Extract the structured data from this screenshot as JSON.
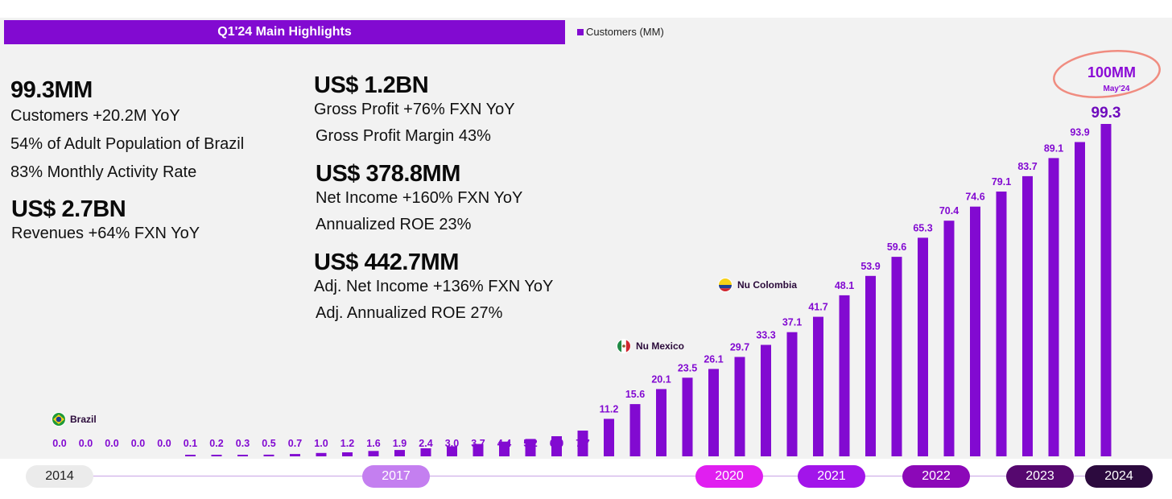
{
  "header": {
    "title": "Q1'24 Main Highlights"
  },
  "legend": {
    "label": "Customers (MM)",
    "color": "#820ad1"
  },
  "highlights": {
    "customers": {
      "headline": "99.3MM",
      "lines": [
        "Customers +20.2M YoY",
        "54% of Adult Population of Brazil",
        "83% Monthly Activity Rate"
      ]
    },
    "revenues": {
      "headline": "US$ 2.7BN",
      "lines": [
        "Revenues +64%  FXN YoY"
      ]
    },
    "gross_profit": {
      "headline": "US$ 1.2BN",
      "lines": [
        "Gross Profit +76%  FXN YoY",
        "Gross Profit Margin 43%"
      ]
    },
    "net_income": {
      "headline": "US$ 378.8MM",
      "lines": [
        "Net Income +160% FXN YoY",
        "Annualized ROE 23%"
      ]
    },
    "adj_net_income": {
      "headline": "US$ 442.7MM",
      "lines": [
        "Adj. Net Income +136% FXN YoY",
        "Adj. Annualized ROE 27%"
      ]
    }
  },
  "chart_data": {
    "type": "bar",
    "series": [
      {
        "name": "Customers (MM)",
        "values": [
          0.0,
          0.0,
          0.0,
          0.0,
          0.0,
          0.1,
          0.2,
          0.3,
          0.5,
          0.7,
          1.0,
          1.2,
          1.6,
          1.9,
          2.4,
          3.0,
          3.7,
          4.4,
          5.2,
          6.0,
          7.7,
          11.2,
          15.6,
          20.1,
          23.5,
          26.1,
          29.7,
          33.3,
          37.1,
          41.7,
          48.1,
          53.9,
          59.6,
          65.3,
          70.4,
          74.6,
          79.1,
          83.7,
          89.1,
          93.9,
          99.3
        ]
      }
    ],
    "bar_color": "#820ad1",
    "last_bar_label_color": "#6f0bbd",
    "grid": false,
    "legend_position": "top-left",
    "annotations": [
      {
        "label": "Brazil",
        "flag": "brazil-flag",
        "at_index": 0
      },
      {
        "label": "Nu Mexico",
        "flag": "mexico-flag",
        "at_index": 23
      },
      {
        "label": "Nu Colombia",
        "flag": "colombia-flag",
        "at_index": 27
      }
    ],
    "callout": {
      "value": "100MM",
      "date": "May'24",
      "color": "#8a0bd6",
      "circle_color": "#f08c80"
    }
  },
  "timeline": {
    "years": [
      {
        "label": "2014",
        "bg": "#ebebeb",
        "fg": "#222222"
      },
      {
        "label": "2017",
        "bg": "#c47ff0",
        "fg": "#ffffff"
      },
      {
        "label": "2020",
        "bg": "#e01ff0",
        "fg": "#ffffff"
      },
      {
        "label": "2021",
        "bg": "#a215ea",
        "fg": "#ffffff"
      },
      {
        "label": "2022",
        "bg": "#8c08b8",
        "fg": "#ffffff"
      },
      {
        "label": "2023",
        "bg": "#56086f",
        "fg": "#ffffff"
      },
      {
        "label": "2024",
        "bg": "#2c0a3e",
        "fg": "#ffffff"
      }
    ]
  }
}
